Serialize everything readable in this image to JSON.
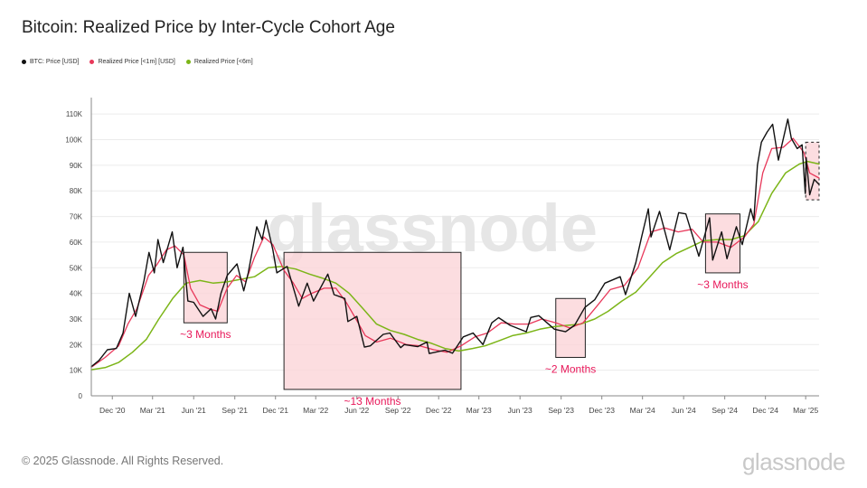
{
  "header": {
    "title": "Bitcoin: Realized Price by Inter-Cycle Cohort Age"
  },
  "footer": {
    "copyright": "© 2025 Glassnode. All Rights Reserved.",
    "brand": "glassnode"
  },
  "watermark": "glassnode",
  "colors": {
    "price": "#111111",
    "rp1m": "#e8385a",
    "rp6m": "#7cb518",
    "box_fill": "#fbd5d8",
    "annotation": "#e8185a"
  },
  "chart_data": {
    "type": "line",
    "title": "Bitcoin: Realized Price by Inter-Cycle Cohort Age",
    "ylim": [
      0,
      115000
    ],
    "yticks": [
      {
        "v": 0,
        "label": "0"
      },
      {
        "v": 10000,
        "label": "10K"
      },
      {
        "v": 20000,
        "label": "20K"
      },
      {
        "v": 30000,
        "label": "30K"
      },
      {
        "v": 40000,
        "label": "40K"
      },
      {
        "v": 50000,
        "label": "50K"
      },
      {
        "v": 60000,
        "label": "60K"
      },
      {
        "v": 70000,
        "label": "70K"
      },
      {
        "v": 80000,
        "label": "80K"
      },
      {
        "v": 90000,
        "label": "90K"
      },
      {
        "v": 100000,
        "label": "100K"
      },
      {
        "v": 110000,
        "label": "110K"
      }
    ],
    "xlim": [
      "2020-10-15",
      "2025-03-31"
    ],
    "xticks": [
      {
        "d": "2020-12-01",
        "label": "Dec '20"
      },
      {
        "d": "2021-03-01",
        "label": "Mar '21"
      },
      {
        "d": "2021-06-01",
        "label": "Jun '21"
      },
      {
        "d": "2021-09-01",
        "label": "Sep '21"
      },
      {
        "d": "2021-12-01",
        "label": "Dec '21"
      },
      {
        "d": "2022-03-01",
        "label": "Mar '22"
      },
      {
        "d": "2022-06-01",
        "label": "Jun '22"
      },
      {
        "d": "2022-09-01",
        "label": "Sep '22"
      },
      {
        "d": "2022-12-01",
        "label": "Dec '22"
      },
      {
        "d": "2023-03-01",
        "label": "Mar '23"
      },
      {
        "d": "2023-06-01",
        "label": "Jun '23"
      },
      {
        "d": "2023-09-01",
        "label": "Sep '23"
      },
      {
        "d": "2023-12-01",
        "label": "Dec '23"
      },
      {
        "d": "2024-03-01",
        "label": "Mar '24"
      },
      {
        "d": "2024-06-01",
        "label": "Jun '24"
      },
      {
        "d": "2024-09-01",
        "label": "Sep '24"
      },
      {
        "d": "2024-12-01",
        "label": "Dec '24"
      },
      {
        "d": "2025-03-01",
        "label": "Mar '25"
      }
    ],
    "series": [
      {
        "name": "BTC: Price [USD]",
        "color": "#111111",
        "width": 1.4,
        "points": [
          [
            "2020-10-15",
            11400
          ],
          [
            "2020-11-01",
            13800
          ],
          [
            "2020-11-20",
            18000
          ],
          [
            "2020-12-10",
            18500
          ],
          [
            "2020-12-25",
            24500
          ],
          [
            "2021-01-08",
            40000
          ],
          [
            "2021-01-22",
            31000
          ],
          [
            "2021-02-10",
            45000
          ],
          [
            "2021-02-21",
            56000
          ],
          [
            "2021-03-05",
            48000
          ],
          [
            "2021-03-13",
            61000
          ],
          [
            "2021-03-25",
            52000
          ],
          [
            "2021-04-14",
            64000
          ],
          [
            "2021-04-25",
            50000
          ],
          [
            "2021-05-08",
            58000
          ],
          [
            "2021-05-19",
            37000
          ],
          [
            "2021-06-01",
            36500
          ],
          [
            "2021-06-22",
            31000
          ],
          [
            "2021-07-10",
            34000
          ],
          [
            "2021-07-20",
            30000
          ],
          [
            "2021-08-01",
            40000
          ],
          [
            "2021-08-15",
            47000
          ],
          [
            "2021-09-06",
            51500
          ],
          [
            "2021-09-21",
            41000
          ],
          [
            "2021-10-01",
            48000
          ],
          [
            "2021-10-20",
            66000
          ],
          [
            "2021-11-01",
            61000
          ],
          [
            "2021-11-10",
            68500
          ],
          [
            "2021-11-25",
            57000
          ],
          [
            "2021-12-04",
            48000
          ],
          [
            "2021-12-27",
            50500
          ],
          [
            "2022-01-22",
            35000
          ],
          [
            "2022-02-10",
            44000
          ],
          [
            "2022-02-24",
            37000
          ],
          [
            "2022-03-28",
            47500
          ],
          [
            "2022-04-11",
            39500
          ],
          [
            "2022-05-05",
            38000
          ],
          [
            "2022-05-12",
            29000
          ],
          [
            "2022-06-01",
            31000
          ],
          [
            "2022-06-18",
            19000
          ],
          [
            "2022-07-01",
            19500
          ],
          [
            "2022-07-30",
            24000
          ],
          [
            "2022-08-14",
            24500
          ],
          [
            "2022-09-07",
            18800
          ],
          [
            "2022-09-15",
            20000
          ],
          [
            "2022-10-15",
            19200
          ],
          [
            "2022-11-05",
            21000
          ],
          [
            "2022-11-10",
            16500
          ],
          [
            "2022-12-15",
            17800
          ],
          [
            "2023-01-01",
            16600
          ],
          [
            "2023-01-25",
            23000
          ],
          [
            "2023-02-16",
            24500
          ],
          [
            "2023-03-10",
            20000
          ],
          [
            "2023-03-30",
            28500
          ],
          [
            "2023-04-14",
            30500
          ],
          [
            "2023-05-10",
            27500
          ],
          [
            "2023-06-15",
            25000
          ],
          [
            "2023-06-25",
            30600
          ],
          [
            "2023-07-13",
            31300
          ],
          [
            "2023-08-17",
            26000
          ],
          [
            "2023-09-11",
            25000
          ],
          [
            "2023-10-01",
            27500
          ],
          [
            "2023-10-24",
            34500
          ],
          [
            "2023-11-15",
            37500
          ],
          [
            "2023-12-08",
            44000
          ],
          [
            "2024-01-11",
            46500
          ],
          [
            "2024-01-23",
            39500
          ],
          [
            "2024-02-15",
            52000
          ],
          [
            "2024-02-28",
            62000
          ],
          [
            "2024-03-14",
            73000
          ],
          [
            "2024-03-20",
            62000
          ],
          [
            "2024-04-08",
            72000
          ],
          [
            "2024-05-01",
            57000
          ],
          [
            "2024-05-21",
            71500
          ],
          [
            "2024-06-06",
            71000
          ],
          [
            "2024-07-05",
            54500
          ],
          [
            "2024-07-29",
            69500
          ],
          [
            "2024-08-05",
            53000
          ],
          [
            "2024-08-25",
            64000
          ],
          [
            "2024-09-06",
            53500
          ],
          [
            "2024-09-27",
            66000
          ],
          [
            "2024-10-10",
            59000
          ],
          [
            "2024-10-29",
            73000
          ],
          [
            "2024-11-05",
            68500
          ],
          [
            "2024-11-13",
            90000
          ],
          [
            "2024-11-22",
            99000
          ],
          [
            "2024-12-05",
            103000
          ],
          [
            "2024-12-17",
            106000
          ],
          [
            "2024-12-30",
            92000
          ],
          [
            "2025-01-20",
            108000
          ],
          [
            "2025-01-28",
            100500
          ],
          [
            "2025-02-10",
            96500
          ],
          [
            "2025-02-21",
            98000
          ],
          [
            "2025-02-28",
            79000
          ],
          [
            "2025-03-02",
            93000
          ],
          [
            "2025-03-10",
            78500
          ],
          [
            "2025-03-20",
            84500
          ],
          [
            "2025-03-31",
            82500
          ]
        ]
      },
      {
        "name": "Realized Price [<1m] [USD]",
        "color": "#e8385a",
        "width": 1.3,
        "points": [
          [
            "2020-10-15",
            11200
          ],
          [
            "2020-11-15",
            15000
          ],
          [
            "2020-12-15",
            19500
          ],
          [
            "2021-01-05",
            28000
          ],
          [
            "2021-01-25",
            34000
          ],
          [
            "2021-02-20",
            47000
          ],
          [
            "2021-03-10",
            51000
          ],
          [
            "2021-04-01",
            57000
          ],
          [
            "2021-04-20",
            58500
          ],
          [
            "2021-05-10",
            55000
          ],
          [
            "2021-05-25",
            42000
          ],
          [
            "2021-06-15",
            35500
          ],
          [
            "2021-07-05",
            34000
          ],
          [
            "2021-07-25",
            33000
          ],
          [
            "2021-08-15",
            42000
          ],
          [
            "2021-09-05",
            47000
          ],
          [
            "2021-09-25",
            44500
          ],
          [
            "2021-10-15",
            54000
          ],
          [
            "2021-11-05",
            62000
          ],
          [
            "2021-11-25",
            59000
          ],
          [
            "2021-12-20",
            49000
          ],
          [
            "2022-01-10",
            44000
          ],
          [
            "2022-01-30",
            38000
          ],
          [
            "2022-02-20",
            40000
          ],
          [
            "2022-03-20",
            42000
          ],
          [
            "2022-04-15",
            42000
          ],
          [
            "2022-05-10",
            36000
          ],
          [
            "2022-05-30",
            30000
          ],
          [
            "2022-06-20",
            23500
          ],
          [
            "2022-07-15",
            21000
          ],
          [
            "2022-08-15",
            22500
          ],
          [
            "2022-09-20",
            20000
          ],
          [
            "2022-10-20",
            19500
          ],
          [
            "2022-11-20",
            18000
          ],
          [
            "2022-12-20",
            17000
          ],
          [
            "2023-01-20",
            19500
          ],
          [
            "2023-02-20",
            23000
          ],
          [
            "2023-03-20",
            24500
          ],
          [
            "2023-04-20",
            28500
          ],
          [
            "2023-05-20",
            28000
          ],
          [
            "2023-06-20",
            28000
          ],
          [
            "2023-07-20",
            30000
          ],
          [
            "2023-08-20",
            28500
          ],
          [
            "2023-09-20",
            26500
          ],
          [
            "2023-10-20",
            28500
          ],
          [
            "2023-11-20",
            35000
          ],
          [
            "2023-12-20",
            41500
          ],
          [
            "2024-01-20",
            43000
          ],
          [
            "2024-02-20",
            50000
          ],
          [
            "2024-03-20",
            64000
          ],
          [
            "2024-04-20",
            65500
          ],
          [
            "2024-05-20",
            64000
          ],
          [
            "2024-06-20",
            65000
          ],
          [
            "2024-07-15",
            60000
          ],
          [
            "2024-08-15",
            60000
          ],
          [
            "2024-09-15",
            58000
          ],
          [
            "2024-10-15",
            62000
          ],
          [
            "2024-11-05",
            67000
          ],
          [
            "2024-11-25",
            87000
          ],
          [
            "2024-12-15",
            96500
          ],
          [
            "2025-01-10",
            97000
          ],
          [
            "2025-02-01",
            100500
          ],
          [
            "2025-02-25",
            95000
          ],
          [
            "2025-03-10",
            87000
          ],
          [
            "2025-03-31",
            85000
          ]
        ]
      },
      {
        "name": "Realized Price [<6m]",
        "color": "#7cb518",
        "width": 1.5,
        "points": [
          [
            "2020-10-15",
            10200
          ],
          [
            "2020-11-15",
            11000
          ],
          [
            "2020-12-15",
            13000
          ],
          [
            "2021-01-15",
            17000
          ],
          [
            "2021-02-15",
            22000
          ],
          [
            "2021-03-15",
            30000
          ],
          [
            "2021-04-15",
            38000
          ],
          [
            "2021-05-15",
            44000
          ],
          [
            "2021-06-15",
            45000
          ],
          [
            "2021-07-15",
            44000
          ],
          [
            "2021-08-15",
            44500
          ],
          [
            "2021-09-15",
            45500
          ],
          [
            "2021-10-15",
            46500
          ],
          [
            "2021-11-15",
            50000
          ],
          [
            "2021-12-15",
            50500
          ],
          [
            "2022-01-15",
            49500
          ],
          [
            "2022-02-15",
            47500
          ],
          [
            "2022-03-15",
            46000
          ],
          [
            "2022-04-15",
            44000
          ],
          [
            "2022-05-15",
            40000
          ],
          [
            "2022-06-15",
            34000
          ],
          [
            "2022-07-15",
            28000
          ],
          [
            "2022-08-15",
            25500
          ],
          [
            "2022-09-15",
            24000
          ],
          [
            "2022-10-15",
            22000
          ],
          [
            "2022-11-15",
            20500
          ],
          [
            "2022-12-15",
            18500
          ],
          [
            "2023-01-15",
            17500
          ],
          [
            "2023-02-15",
            18500
          ],
          [
            "2023-03-15",
            19500
          ],
          [
            "2023-04-15",
            21500
          ],
          [
            "2023-05-15",
            23500
          ],
          [
            "2023-06-15",
            24500
          ],
          [
            "2023-07-15",
            26000
          ],
          [
            "2023-08-15",
            27000
          ],
          [
            "2023-09-15",
            27500
          ],
          [
            "2023-10-15",
            28000
          ],
          [
            "2023-11-15",
            30000
          ],
          [
            "2023-12-15",
            33000
          ],
          [
            "2024-01-15",
            37000
          ],
          [
            "2024-02-15",
            40500
          ],
          [
            "2024-03-15",
            46000
          ],
          [
            "2024-04-15",
            52000
          ],
          [
            "2024-05-15",
            55500
          ],
          [
            "2024-06-15",
            58000
          ],
          [
            "2024-07-15",
            60500
          ],
          [
            "2024-08-15",
            61000
          ],
          [
            "2024-09-15",
            61000
          ],
          [
            "2024-10-15",
            62500
          ],
          [
            "2024-11-15",
            68000
          ],
          [
            "2024-12-15",
            79000
          ],
          [
            "2025-01-15",
            87000
          ],
          [
            "2025-02-15",
            90500
          ],
          [
            "2025-03-05",
            91500
          ],
          [
            "2025-03-31",
            90500
          ]
        ]
      }
    ],
    "annotations": [
      {
        "x0": "2021-05-10",
        "x1": "2021-08-15",
        "y0": 28500,
        "y1": 56000,
        "label": "~3 Months",
        "dashed": false
      },
      {
        "x0": "2021-12-20",
        "x1": "2023-01-20",
        "y0": 2500,
        "y1": 56000,
        "label": "~13 Months",
        "dashed": false
      },
      {
        "x0": "2023-08-20",
        "x1": "2023-10-25",
        "y0": 15000,
        "y1": 38000,
        "label": "~2 Months",
        "dashed": false
      },
      {
        "x0": "2024-07-20",
        "x1": "2024-10-05",
        "y0": 48000,
        "y1": 71000,
        "label": "~3 Months",
        "dashed": false
      },
      {
        "x0": "2025-03-01",
        "x1": "2025-03-31",
        "y0": 76500,
        "y1": 99000,
        "label": "",
        "dashed": true
      }
    ]
  }
}
